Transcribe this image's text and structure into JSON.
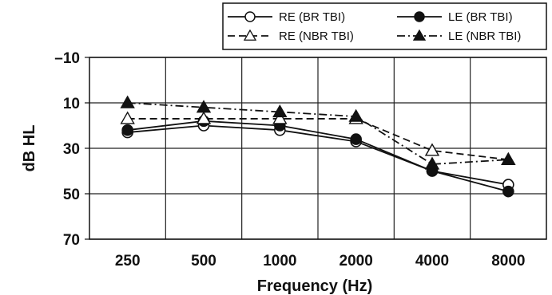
{
  "chart_data": {
    "type": "line",
    "title": "",
    "xlabel": "Frequency (Hz)",
    "ylabel": "dB HL",
    "categories": [
      "250",
      "500",
      "1000",
      "2000",
      "4000",
      "8000"
    ],
    "ylim": [
      -10,
      70
    ],
    "y_inverted": true,
    "yticks": [
      "–10",
      "10",
      "30",
      "50",
      "70"
    ],
    "ytick_values": [
      -10,
      10,
      30,
      50,
      70
    ],
    "grid": true,
    "legend_position": "top-right",
    "series": [
      {
        "name": "RE (BR TBI)",
        "values": [
          23,
          20,
          22,
          27,
          40,
          46
        ],
        "marker": "circle-open",
        "line": "solid",
        "color": "#111111"
      },
      {
        "name": "LE (BR TBI)",
        "values": [
          22,
          18,
          20,
          26,
          40,
          49
        ],
        "marker": "circle-filled",
        "line": "solid",
        "color": "#111111"
      },
      {
        "name": "RE (NBR TBI)",
        "values": [
          17,
          17,
          17,
          17,
          31,
          35
        ],
        "marker": "triangle-open",
        "line": "dashed",
        "color": "#111111"
      },
      {
        "name": "LE (NBR TBI)",
        "values": [
          10,
          12,
          14,
          16,
          37,
          35
        ],
        "marker": "triangle-filled",
        "line": "dashdot",
        "color": "#111111"
      }
    ]
  }
}
